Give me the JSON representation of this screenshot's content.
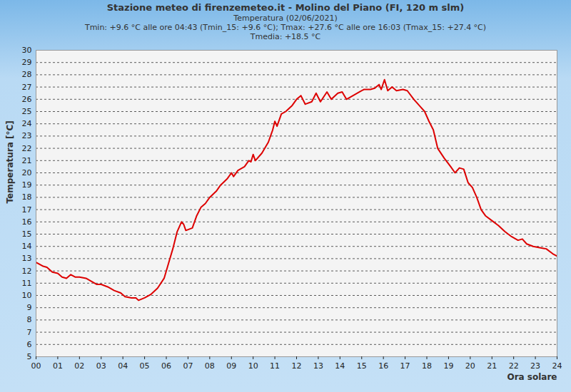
{
  "chart_data": {
    "type": "line",
    "title": "Stazione meteo di firenzemeteo.it - Molino del Piano (FI, 120 m slm)",
    "subtitle": [
      "Temperatura (02/06/2021)",
      "Tmin: +9.6 °C alle ore 04:43 (Tmin_15: +9.6 °C); Tmax: +27.6 °C alle ore 16:03 (Tmax_15: +27.4 °C)",
      "Tmedia: +18.5 °C"
    ],
    "x_label": "Ora solare",
    "y_label": "Temperatura [°C]",
    "x": [
      0.0,
      0.3,
      0.5,
      0.75,
      1.0,
      1.2,
      1.4,
      1.6,
      1.8,
      2.0,
      2.3,
      2.5,
      2.8,
      3.0,
      3.3,
      3.6,
      3.9,
      4.1,
      4.4,
      4.6,
      4.72,
      5.0,
      5.3,
      5.6,
      5.9,
      6.1,
      6.3,
      6.5,
      6.7,
      6.8,
      6.9,
      7.2,
      7.4,
      7.6,
      7.8,
      8.0,
      8.3,
      8.5,
      8.8,
      9.0,
      9.1,
      9.3,
      9.6,
      9.8,
      9.9,
      10.0,
      10.1,
      10.4,
      10.7,
      10.9,
      11.0,
      11.1,
      11.3,
      11.5,
      11.8,
      12.0,
      12.2,
      12.4,
      12.7,
      12.9,
      13.1,
      13.4,
      13.6,
      13.9,
      14.1,
      14.3,
      14.6,
      14.9,
      15.1,
      15.4,
      15.6,
      15.8,
      15.9,
      16.05,
      16.2,
      16.4,
      16.6,
      16.9,
      17.1,
      17.4,
      17.7,
      17.9,
      18.1,
      18.3,
      18.5,
      18.8,
      19.1,
      19.3,
      19.5,
      19.7,
      19.9,
      20.1,
      20.3,
      20.5,
      20.7,
      21.0,
      21.3,
      21.6,
      21.9,
      22.2,
      22.4,
      22.6,
      22.9,
      23.2,
      23.5,
      23.8,
      24.0
    ],
    "series": [
      {
        "color": "#dd0000",
        "values": [
          12.7,
          12.4,
          12.3,
          11.9,
          11.8,
          11.5,
          11.4,
          11.7,
          11.5,
          11.5,
          11.4,
          11.2,
          10.9,
          10.9,
          10.7,
          10.4,
          10.2,
          9.9,
          9.8,
          9.8,
          9.6,
          9.8,
          10.1,
          10.6,
          11.4,
          12.6,
          13.8,
          15.2,
          16.0,
          15.8,
          15.3,
          15.5,
          16.5,
          17.2,
          17.5,
          18.0,
          18.5,
          19.0,
          19.5,
          20.0,
          19.7,
          20.2,
          20.5,
          21.0,
          20.9,
          21.5,
          21.0,
          21.6,
          22.5,
          23.5,
          24.2,
          23.8,
          24.8,
          25.0,
          25.5,
          26.0,
          26.3,
          25.6,
          25.8,
          26.5,
          25.8,
          26.6,
          26.0,
          26.5,
          26.6,
          26.0,
          26.3,
          26.6,
          26.8,
          26.8,
          26.9,
          27.2,
          26.8,
          27.6,
          26.7,
          27.0,
          26.7,
          26.8,
          26.7,
          26.0,
          25.4,
          25.0,
          24.2,
          23.5,
          22.0,
          21.2,
          20.5,
          20.0,
          20.4,
          20.3,
          19.2,
          18.8,
          18.0,
          17.0,
          16.5,
          16.1,
          15.7,
          15.2,
          14.8,
          14.5,
          14.6,
          14.2,
          14.0,
          13.9,
          13.8,
          13.4,
          13.2
        ]
      }
    ],
    "xlim": [
      0,
      24
    ],
    "ylim": [
      5,
      30
    ],
    "xticks": [
      {
        "value": 0,
        "label": "00"
      },
      {
        "value": 1,
        "label": "01"
      },
      {
        "value": 2,
        "label": "02"
      },
      {
        "value": 3,
        "label": "03"
      },
      {
        "value": 4,
        "label": "04"
      },
      {
        "value": 5,
        "label": "05"
      },
      {
        "value": 6,
        "label": "06"
      },
      {
        "value": 7,
        "label": "07"
      },
      {
        "value": 8,
        "label": "08"
      },
      {
        "value": 9,
        "label": "09"
      },
      10,
      11,
      12,
      13,
      14,
      15,
      16,
      17,
      18,
      19,
      20,
      21,
      22,
      23,
      24
    ],
    "yticks": [
      5,
      6,
      7,
      8,
      9,
      10,
      11,
      12,
      13,
      14,
      15,
      16,
      17,
      18,
      19,
      20,
      21,
      22,
      23,
      24,
      25,
      26,
      27,
      28,
      29,
      30
    ],
    "grid": true
  }
}
